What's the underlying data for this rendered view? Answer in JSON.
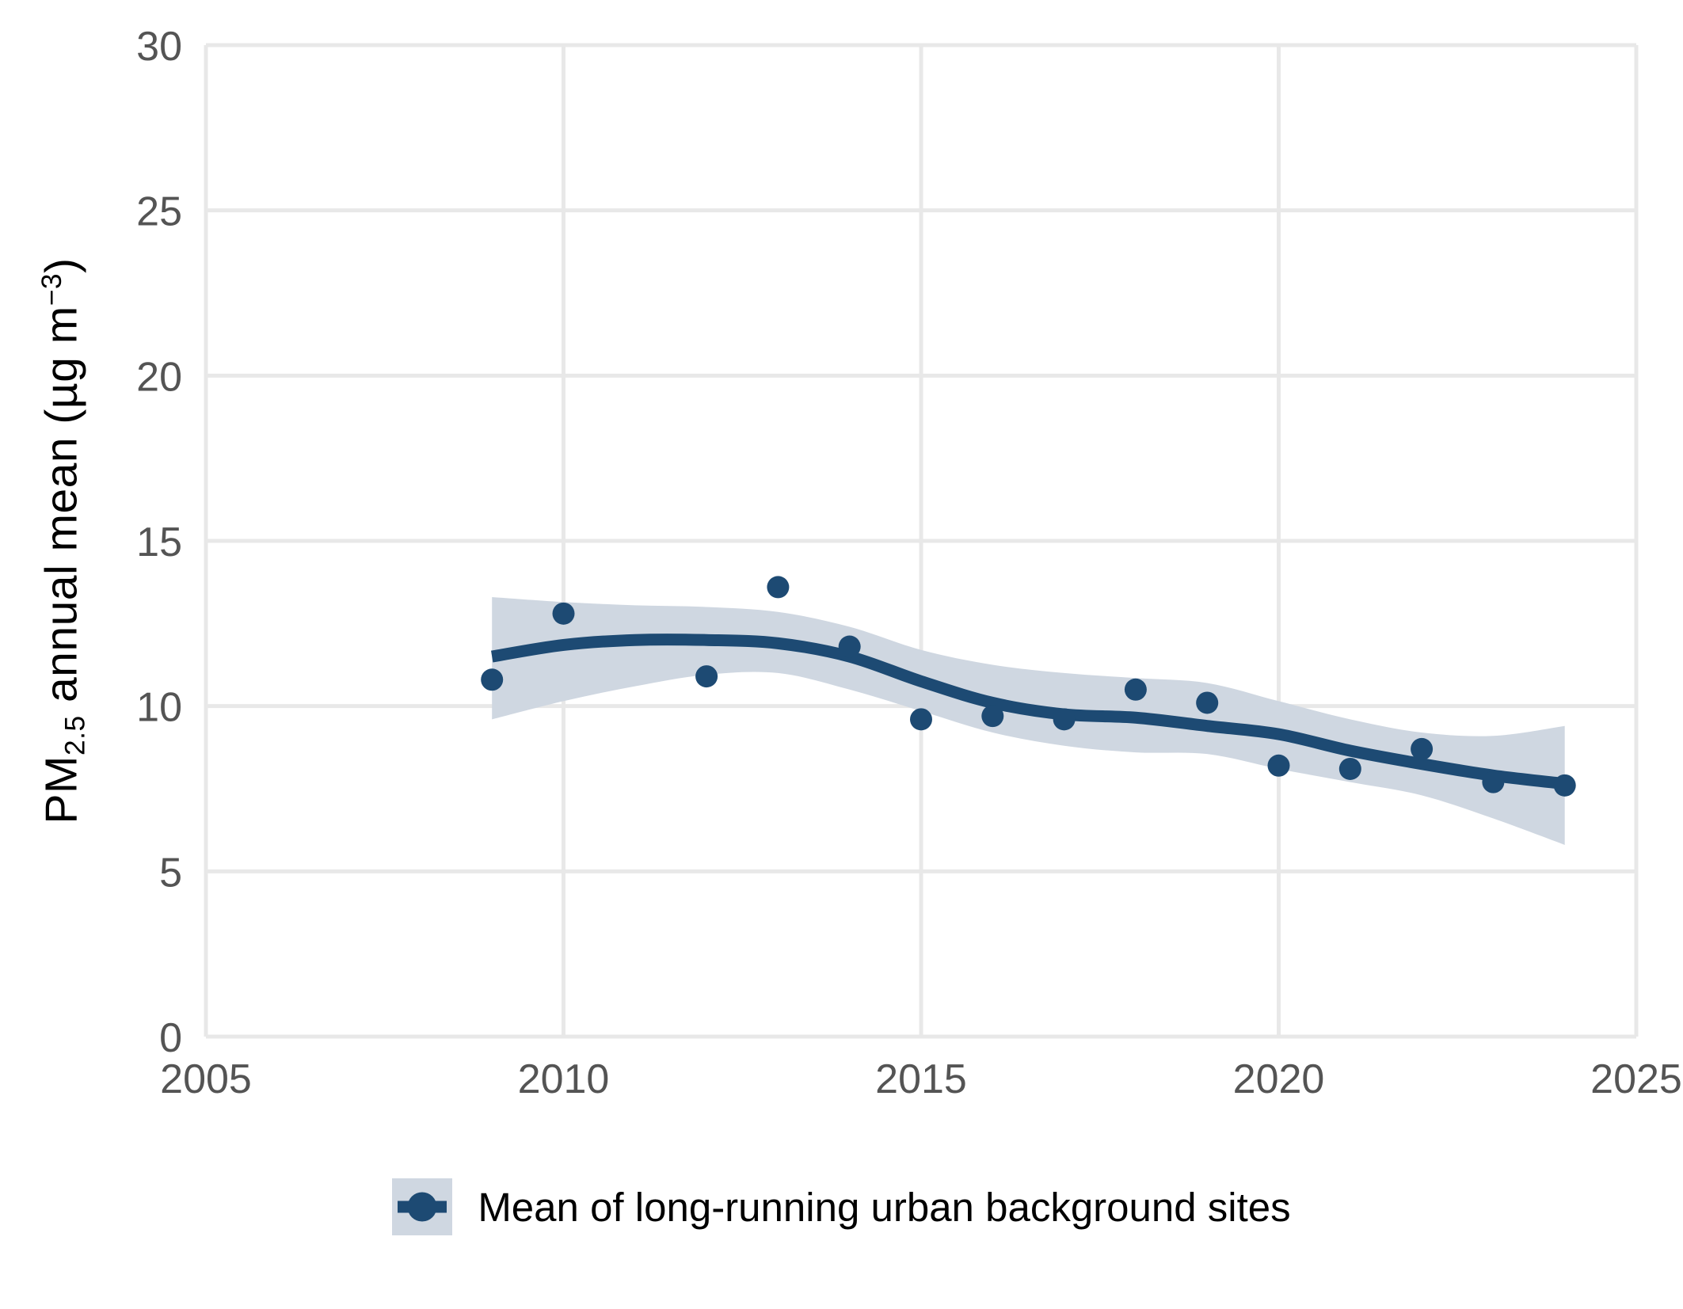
{
  "figure": {
    "y_axis_title": {
      "prefix": "PM",
      "subscript": "2.5",
      "middle": " annual mean (µg m",
      "superscript": "−3",
      "suffix": ")"
    },
    "legend": {
      "label": "Mean of long-running urban background sites"
    }
  },
  "style": {
    "accent": "#1d4a73",
    "band": "#cfd7e1",
    "grid": "#e8e8e8",
    "tick_text": "#545454",
    "background": "#ffffff"
  },
  "chart_data": {
    "type": "scatter",
    "title": "",
    "xlabel": "",
    "ylabel": "PM2.5 annual mean (µg m−3)",
    "xlim": [
      2005,
      2025
    ],
    "ylim": [
      0,
      30
    ],
    "x_ticks": [
      2005,
      2010,
      2015,
      2020,
      2025
    ],
    "y_ticks": [
      0,
      5,
      10,
      15,
      20,
      25,
      30
    ],
    "grid": true,
    "legend_position": "bottom",
    "series": [
      {
        "name": "Mean of long-running urban background sites",
        "points": [
          [
            2009,
            10.8
          ],
          [
            2010,
            12.8
          ],
          [
            2012,
            10.9
          ],
          [
            2013,
            13.6
          ],
          [
            2014,
            11.8
          ],
          [
            2015,
            9.6
          ],
          [
            2016,
            9.7
          ],
          [
            2017,
            9.6
          ],
          [
            2018,
            10.5
          ],
          [
            2019,
            10.1
          ],
          [
            2020,
            8.2
          ],
          [
            2021,
            8.1
          ],
          [
            2022,
            8.7
          ],
          [
            2023,
            7.7
          ],
          [
            2024,
            7.6
          ]
        ]
      }
    ],
    "smooth": {
      "years": [
        2009,
        2010,
        2011,
        2012,
        2013,
        2014,
        2015,
        2016,
        2017,
        2018,
        2019,
        2020,
        2021,
        2022,
        2023,
        2024
      ],
      "line": [
        11.5,
        11.85,
        12.0,
        12.0,
        11.9,
        11.5,
        10.75,
        10.1,
        9.75,
        9.65,
        9.4,
        9.15,
        8.65,
        8.25,
        7.9,
        7.65
      ],
      "upper": [
        13.3,
        13.15,
        13.05,
        13.0,
        12.85,
        12.4,
        11.7,
        11.25,
        11.0,
        10.85,
        10.7,
        10.15,
        9.6,
        9.2,
        9.1,
        9.4
      ],
      "lower": [
        9.6,
        10.15,
        10.6,
        10.95,
        11.0,
        10.5,
        9.85,
        9.2,
        8.8,
        8.6,
        8.55,
        8.1,
        7.7,
        7.3,
        6.6,
        5.8
      ]
    }
  }
}
